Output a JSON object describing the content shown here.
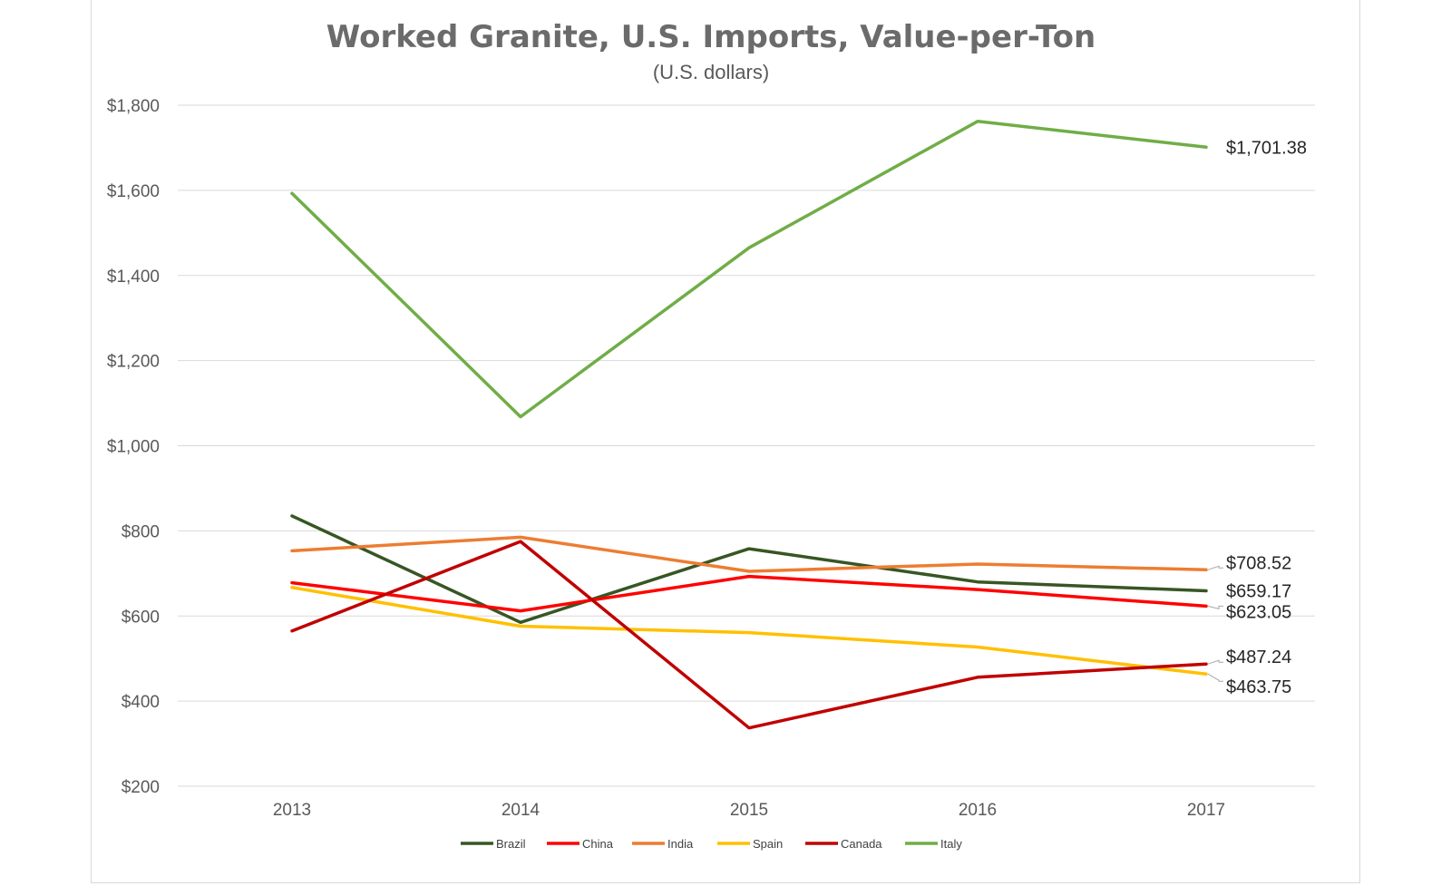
{
  "chart_data": {
    "type": "line",
    "title": "Worked Granite, U.S. Imports, Value-per-Ton",
    "subtitle": "(U.S. dollars)",
    "xlabel": "",
    "ylabel": "",
    "categories": [
      "2013",
      "2014",
      "2015",
      "2016",
      "2017"
    ],
    "ylim": [
      200,
      1800
    ],
    "yticks": [
      200,
      400,
      600,
      800,
      1000,
      1200,
      1400,
      1600,
      1800
    ],
    "ytick_labels": [
      "$200",
      "$400",
      "$600",
      "$800",
      "$1,000",
      "$1,200",
      "$1,400",
      "$1,600",
      "$1,800"
    ],
    "grid": true,
    "legend_position": "bottom",
    "series": [
      {
        "name": "Brazil",
        "color": "#375623",
        "values": [
          835,
          585,
          758,
          680,
          659.17
        ],
        "end_label": "$659.17"
      },
      {
        "name": "China",
        "color": "#ff0000",
        "values": [
          678,
          612,
          693,
          662,
          623.05
        ],
        "end_label": "$623.05"
      },
      {
        "name": "India",
        "color": "#ed7d31",
        "values": [
          753,
          785,
          705,
          722,
          708.52
        ],
        "end_label": "$708.52"
      },
      {
        "name": "Spain",
        "color": "#ffc000",
        "values": [
          667,
          576,
          561,
          527,
          463.75
        ],
        "end_label": "$463.75"
      },
      {
        "name": "Canada",
        "color": "#c00000",
        "values": [
          565,
          775,
          337,
          456,
          487.24
        ],
        "end_label": "$487.24"
      },
      {
        "name": "Italy",
        "color": "#70ad47",
        "values": [
          1593,
          1068,
          1465,
          1762,
          1701.38
        ],
        "end_label": "$1,701.38"
      }
    ]
  }
}
